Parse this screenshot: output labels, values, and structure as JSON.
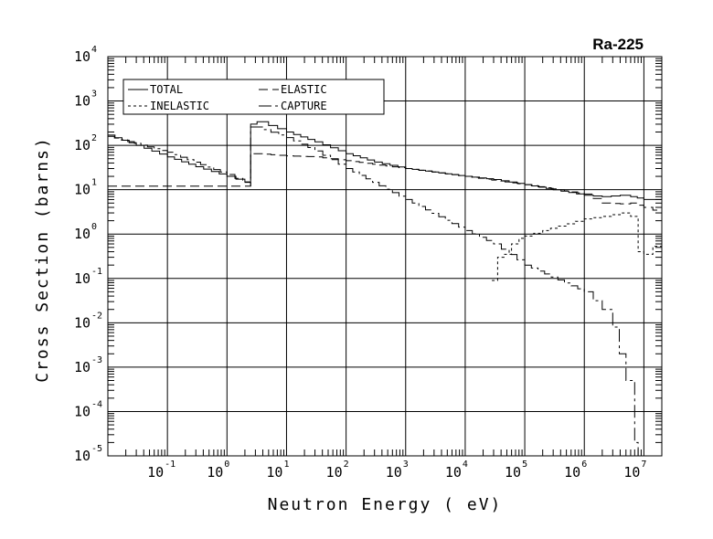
{
  "chart_data": {
    "type": "line",
    "title": "Ra-225",
    "xlabel": "Neutron Energy ( eV)",
    "ylabel": "Cross Section (barns)",
    "x_scale": "log",
    "y_scale": "log",
    "xlim": [
      0.01,
      20000000
    ],
    "ylim": [
      1e-05,
      10000
    ],
    "grid": true,
    "legend_position": "top-left",
    "x_ticks": [
      {
        "base": "10",
        "exp": "-1",
        "value": 0.1
      },
      {
        "base": "10",
        "exp": "0",
        "value": 1
      },
      {
        "base": "10",
        "exp": "1",
        "value": 10
      },
      {
        "base": "10",
        "exp": "2",
        "value": 100
      },
      {
        "base": "10",
        "exp": "3",
        "value": 1000
      },
      {
        "base": "10",
        "exp": "4",
        "value": 10000
      },
      {
        "base": "10",
        "exp": "5",
        "value": 100000
      },
      {
        "base": "10",
        "exp": "6",
        "value": 1000000
      },
      {
        "base": "10",
        "exp": "7",
        "value": 10000000
      }
    ],
    "y_ticks": [
      {
        "base": "10",
        "exp": "4",
        "value": 10000
      },
      {
        "base": "10",
        "exp": "3",
        "value": 1000
      },
      {
        "base": "10",
        "exp": "2",
        "value": 100
      },
      {
        "base": "10",
        "exp": "1",
        "value": 10
      },
      {
        "base": "10",
        "exp": "0",
        "value": 1
      },
      {
        "base": "10",
        "exp": "-1",
        "value": 0.1
      },
      {
        "base": "10",
        "exp": "-2",
        "value": 0.01
      },
      {
        "base": "10",
        "exp": "-3",
        "value": 0.001
      },
      {
        "base": "10",
        "exp": "-4",
        "value": 0.0001
      },
      {
        "base": "10",
        "exp": "-5",
        "value": 1e-05
      }
    ],
    "series": [
      {
        "name": "TOTAL",
        "dash": "",
        "x": [
          0.01,
          0.03,
          0.1,
          0.3,
          1.0,
          2.0,
          2.5,
          2.5,
          3.2,
          5,
          10,
          30,
          100,
          300,
          1000,
          10000,
          30000,
          100000,
          300000,
          1000000,
          2000000,
          4000000,
          6000000,
          10000000,
          20000000
        ],
        "y": [
          170,
          100,
          55,
          33,
          20,
          15,
          14,
          300,
          340,
          280,
          200,
          120,
          65,
          42,
          30,
          20,
          17,
          13,
          10,
          7.5,
          7,
          7.5,
          7,
          6,
          6
        ]
      },
      {
        "name": "ELASTIC",
        "dash": "10,5",
        "x": [
          0.01,
          0.1,
          1.0,
          2.5,
          2.5,
          3,
          10,
          30,
          100,
          1000,
          10000,
          100000,
          1000000,
          2000000,
          4000000,
          6000000,
          10000000,
          20000000
        ],
        "y": [
          12,
          12,
          12,
          12,
          65,
          65,
          58,
          55,
          45,
          30,
          20,
          13,
          8,
          5,
          4.8,
          5,
          4,
          3
        ]
      },
      {
        "name": "INELASTIC",
        "dash": "3,3",
        "x": [
          28000,
          32000,
          35000,
          45000,
          60000,
          80000,
          100000,
          200000,
          500000,
          1000000,
          2000000,
          4000000,
          6000000,
          8000000,
          10000000,
          20000000
        ],
        "y": [
          0.09,
          0.09,
          0.3,
          0.35,
          0.6,
          0.8,
          0.9,
          1.2,
          1.7,
          2.2,
          2.5,
          3,
          2.5,
          0.4,
          0.35,
          0.8
        ]
      },
      {
        "name": "CAPTURE",
        "dash": "14,4,3,4",
        "x": [
          0.01,
          0.1,
          1.0,
          2.5,
          2.5,
          3,
          10,
          30,
          100,
          1000,
          10000,
          30000,
          100000,
          1000000,
          2000000,
          3000000,
          5000000,
          7000000,
          8000000
        ],
        "y": [
          160,
          70,
          22,
          12,
          260,
          260,
          150,
          75,
          30,
          6,
          1.2,
          0.6,
          0.2,
          0.05,
          0.02,
          0.008,
          0.0005,
          2e-05,
          1e-05
        ]
      }
    ]
  }
}
